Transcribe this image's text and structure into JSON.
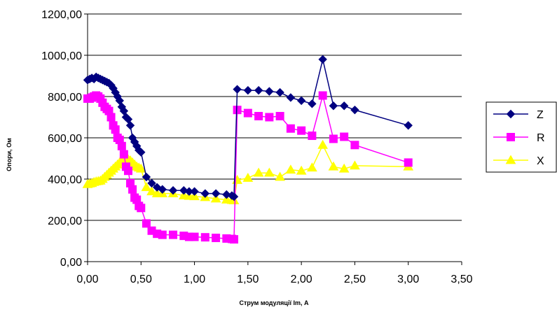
{
  "chart_data": {
    "type": "line",
    "xlabel": "Струм модуляції Im, А",
    "ylabel": "Опори, Ом",
    "xlim": [
      0,
      3.5
    ],
    "ylim": [
      0,
      1200
    ],
    "xticks": [
      "0,00",
      "0,50",
      "1,00",
      "1,50",
      "2,00",
      "2,50",
      "3,00",
      "3,50"
    ],
    "yticks": [
      "0,00",
      "200,00",
      "400,00",
      "600,00",
      "800,00",
      "1000,00",
      "1200,00"
    ],
    "grid": "horizontal",
    "legend_position": "right",
    "series": [
      {
        "name": "Z",
        "color": "#000080",
        "marker": "diamond",
        "x": [
          0.0,
          0.02,
          0.04,
          0.06,
          0.08,
          0.1,
          0.12,
          0.14,
          0.16,
          0.18,
          0.2,
          0.22,
          0.24,
          0.26,
          0.28,
          0.3,
          0.32,
          0.34,
          0.36,
          0.38,
          0.4,
          0.42,
          0.44,
          0.46,
          0.48,
          0.5,
          0.55,
          0.6,
          0.65,
          0.7,
          0.8,
          0.9,
          0.95,
          1.0,
          1.1,
          1.2,
          1.3,
          1.35,
          1.37,
          1.4,
          1.5,
          1.6,
          1.7,
          1.8,
          1.9,
          2.0,
          2.1,
          2.2,
          2.3,
          2.4,
          2.5,
          3.0
        ],
        "values": [
          880,
          885,
          890,
          885,
          895,
          890,
          885,
          880,
          875,
          870,
          865,
          855,
          840,
          820,
          800,
          780,
          750,
          730,
          700,
          690,
          660,
          600,
          580,
          560,
          540,
          530,
          410,
          380,
          360,
          350,
          345,
          345,
          340,
          340,
          330,
          330,
          325,
          320,
          315,
          835,
          830,
          830,
          825,
          820,
          795,
          780,
          765,
          980,
          755,
          755,
          735,
          660
        ]
      },
      {
        "name": "R",
        "color": "#ff00ff",
        "marker": "square",
        "x": [
          0.0,
          0.02,
          0.04,
          0.06,
          0.08,
          0.1,
          0.12,
          0.14,
          0.16,
          0.18,
          0.2,
          0.22,
          0.24,
          0.26,
          0.28,
          0.3,
          0.32,
          0.34,
          0.36,
          0.38,
          0.4,
          0.42,
          0.44,
          0.46,
          0.48,
          0.5,
          0.55,
          0.6,
          0.65,
          0.7,
          0.8,
          0.9,
          0.95,
          1.0,
          1.1,
          1.2,
          1.3,
          1.35,
          1.37,
          1.4,
          1.5,
          1.6,
          1.7,
          1.8,
          1.9,
          2.0,
          2.1,
          2.2,
          2.3,
          2.4,
          2.5,
          3.0
        ],
        "values": [
          790,
          790,
          795,
          800,
          805,
          800,
          790,
          770,
          750,
          740,
          730,
          700,
          660,
          640,
          600,
          590,
          560,
          520,
          460,
          440,
          380,
          350,
          310,
          300,
          270,
          260,
          185,
          150,
          135,
          130,
          130,
          125,
          120,
          120,
          118,
          115,
          112,
          110,
          108,
          735,
          720,
          705,
          700,
          705,
          645,
          635,
          610,
          805,
          595,
          605,
          565,
          480
        ]
      },
      {
        "name": "X",
        "color": "#ffff00",
        "marker": "triangle",
        "x": [
          0.0,
          0.02,
          0.04,
          0.06,
          0.08,
          0.1,
          0.12,
          0.14,
          0.16,
          0.18,
          0.2,
          0.22,
          0.24,
          0.26,
          0.28,
          0.3,
          0.32,
          0.34,
          0.36,
          0.38,
          0.4,
          0.42,
          0.44,
          0.46,
          0.48,
          0.5,
          0.55,
          0.6,
          0.65,
          0.7,
          0.8,
          0.9,
          0.95,
          1.0,
          1.1,
          1.2,
          1.3,
          1.35,
          1.37,
          1.4,
          1.5,
          1.6,
          1.7,
          1.8,
          1.9,
          2.0,
          2.1,
          2.2,
          2.3,
          2.4,
          2.5,
          3.0
        ],
        "values": [
          375,
          378,
          380,
          385,
          388,
          390,
          392,
          400,
          410,
          420,
          430,
          440,
          450,
          460,
          470,
          480,
          485,
          490,
          490,
          495,
          490,
          480,
          470,
          460,
          455,
          450,
          360,
          340,
          330,
          330,
          330,
          320,
          318,
          316,
          312,
          305,
          300,
          298,
          296,
          395,
          405,
          430,
          430,
          410,
          445,
          440,
          455,
          565,
          460,
          450,
          465,
          460
        ]
      }
    ]
  }
}
